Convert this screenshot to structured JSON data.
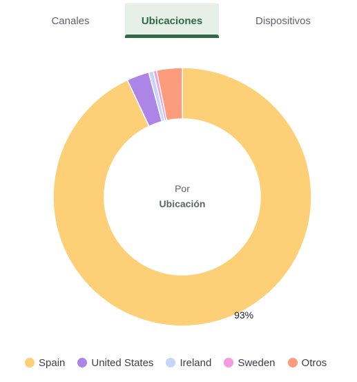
{
  "tabs": [
    {
      "label": "Canales"
    },
    {
      "label": "Ubicaciones"
    },
    {
      "label": "Dispositivos"
    }
  ],
  "center": {
    "line1": "Por",
    "line2": "Ubicación"
  },
  "chart_data": {
    "type": "pie",
    "donut": true,
    "categories": [
      "Spain",
      "United States",
      "Ireland",
      "Sweden",
      "Otros"
    ],
    "values": [
      93,
      2.8,
      0.6,
      0.4,
      3.2
    ],
    "colors": [
      "#fdd078",
      "#ad85e6",
      "#c4d6fb",
      "#f29bde",
      "#fd9c7d"
    ],
    "data_labels": [
      {
        "category": "Spain",
        "text": "93%"
      }
    ],
    "legend": "bottom"
  },
  "legend": {
    "items": [
      {
        "label": "Spain",
        "color": "#fdd078"
      },
      {
        "label": "United States",
        "color": "#ad85e6"
      },
      {
        "label": "Ireland",
        "color": "#c4d6fb"
      },
      {
        "label": "Sweden",
        "color": "#f29bde"
      },
      {
        "label": "Otros",
        "color": "#fd9c7d"
      }
    ]
  }
}
